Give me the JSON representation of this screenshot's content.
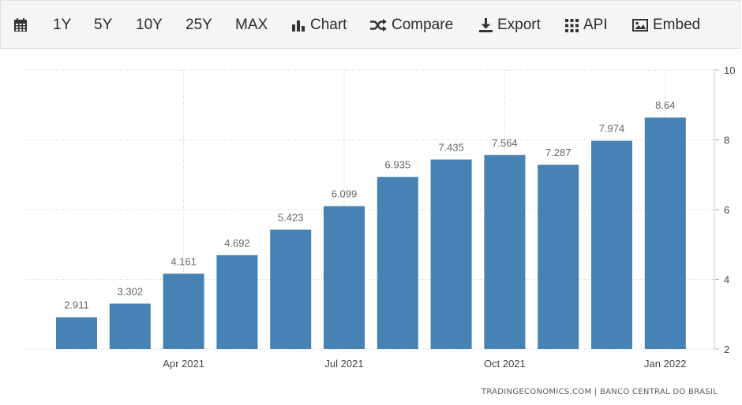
{
  "toolbar": {
    "range_buttons": [
      "1Y",
      "5Y",
      "10Y",
      "25Y",
      "MAX"
    ],
    "chart_label": "Chart",
    "compare_label": "Compare",
    "export_label": "Export",
    "api_label": "API",
    "embed_label": "Embed",
    "icons": [
      "calendar-icon",
      "bar-chart-icon",
      "shuffle-icon",
      "download-icon",
      "grid-icon",
      "image-icon"
    ]
  },
  "source": {
    "text": "TRADINGECONOMICS.COM | BANCO CENTRAL DO BRASIL"
  },
  "colors": {
    "bar": "#4682b4",
    "label": "#666666",
    "grid": "#c8c8c8"
  },
  "chart_data": {
    "type": "bar",
    "x": [
      "2021-02",
      "2021-03",
      "2021-04",
      "2021-05",
      "2021-06",
      "2021-07",
      "2021-08",
      "2021-09",
      "2021-10",
      "2021-11",
      "2021-12",
      "2022-01"
    ],
    "values": [
      2.911,
      3.302,
      4.161,
      4.692,
      5.423,
      6.099,
      6.935,
      7.435,
      7.564,
      7.287,
      7.974,
      8.64
    ],
    "value_labels": [
      "2.911",
      "3.302",
      "4.161",
      "4.692",
      "5.423",
      "6.099",
      "6.935",
      "7.435",
      "7.564",
      "7.287",
      "7.974",
      "8.64"
    ],
    "x_ticks": [
      {
        "label": "Apr 2021",
        "at": "2021-04"
      },
      {
        "label": "Jul 2021",
        "at": "2021-07"
      },
      {
        "label": "Oct 2021",
        "at": "2021-10"
      },
      {
        "label": "Jan 2022",
        "at": "2022-01"
      }
    ],
    "y_ticks": [
      "2",
      "4",
      "6",
      "8",
      "10"
    ],
    "ylim": [
      2,
      10
    ],
    "y_axis_side": "right",
    "grid": true
  }
}
